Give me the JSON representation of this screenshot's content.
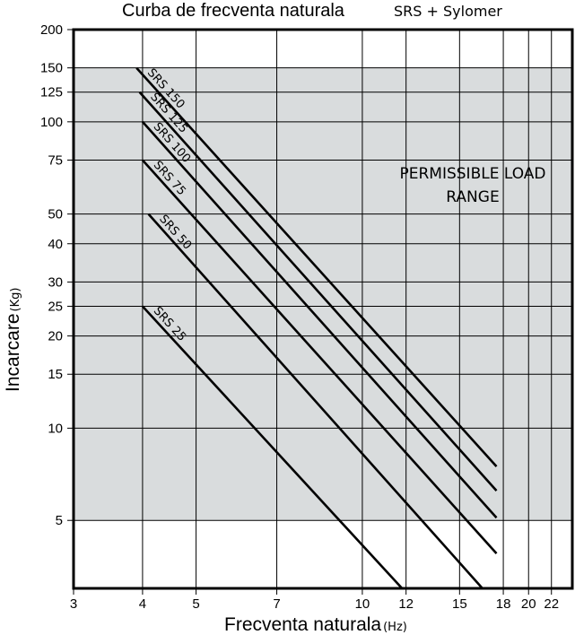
{
  "chart_data": {
    "type": "line",
    "title": "Curba de frecventa naturala",
    "subtitle": "SRS + Sylomer",
    "xlabel": "Frecventa naturala",
    "xlabel_unit": "(Hz)",
    "ylabel": "Incarcare",
    "ylabel_unit": "(Kg)",
    "x_scale": "log",
    "y_scale": "log",
    "xlim": [
      3,
      24
    ],
    "ylim": [
      3,
      200
    ],
    "x_ticks": [
      3,
      4,
      5,
      7,
      10,
      12,
      15,
      18,
      20,
      22
    ],
    "y_ticks": [
      200,
      150,
      125,
      100,
      75,
      50,
      40,
      30,
      25,
      20,
      15,
      10,
      5
    ],
    "grid": true,
    "shaded_region": {
      "label_lines": [
        "PERMISSIBLE LOAD",
        "RANGE"
      ],
      "y_range": [
        5,
        150
      ],
      "color": "#d9dcdd"
    },
    "series": [
      {
        "name": "SRS 150",
        "points": [
          [
            3.9,
            150
          ],
          [
            17.5,
            7.5
          ]
        ]
      },
      {
        "name": "SRS 125",
        "points": [
          [
            3.95,
            125
          ],
          [
            17.5,
            6.25
          ]
        ]
      },
      {
        "name": "SRS 100",
        "points": [
          [
            4.0,
            100
          ],
          [
            17.5,
            5.1
          ]
        ]
      },
      {
        "name": "SRS 75",
        "points": [
          [
            4.0,
            75
          ],
          [
            17.5,
            3.9
          ]
        ]
      },
      {
        "name": "SRS 50",
        "points": [
          [
            4.1,
            50
          ],
          [
            16.5,
            3.0
          ]
        ]
      },
      {
        "name": "SRS 25",
        "points": [
          [
            4.0,
            25
          ],
          [
            11.8,
            3.0
          ]
        ]
      }
    ]
  }
}
